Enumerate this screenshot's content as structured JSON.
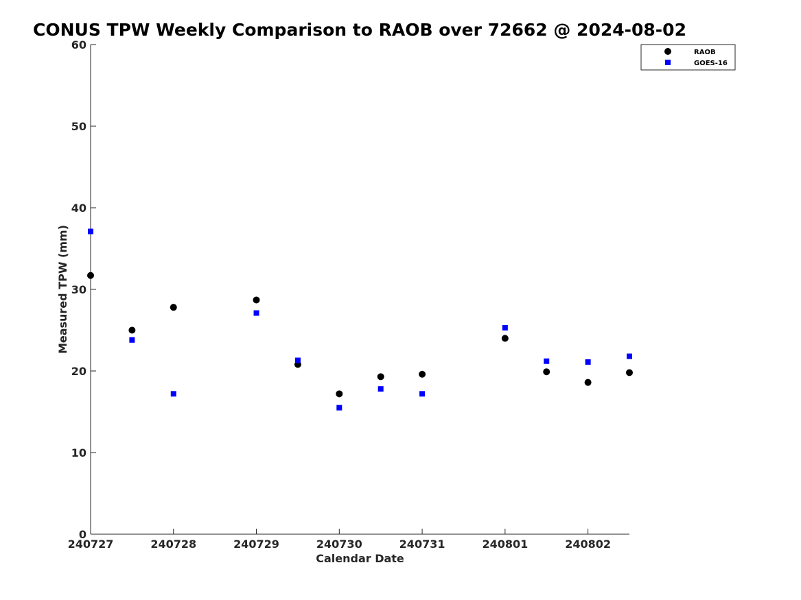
{
  "chart_data": {
    "type": "scatter",
    "title": "CONUS TPW Weekly Comparison to RAOB over 72662 @ 2024-08-02",
    "xlabel": "Calendar Date",
    "ylabel": "Measured TPW (mm)",
    "x_tick_labels": [
      "240727",
      "240728",
      "240729",
      "240730",
      "240731",
      "240801",
      "240802"
    ],
    "xlim": [
      0,
      6.5
    ],
    "ylim": [
      0,
      60
    ],
    "y_ticks": [
      0,
      10,
      20,
      30,
      40,
      50,
      60
    ],
    "grid": false,
    "legend_position": "top-right",
    "series": [
      {
        "name": "RAOB",
        "marker": "circle",
        "color": "#000000",
        "points": [
          {
            "x": 0.0,
            "y": 31.7
          },
          {
            "x": 0.5,
            "y": 25.0
          },
          {
            "x": 1.0,
            "y": 27.8
          },
          {
            "x": 2.0,
            "y": 28.7
          },
          {
            "x": 2.5,
            "y": 20.8
          },
          {
            "x": 3.0,
            "y": 17.2
          },
          {
            "x": 3.5,
            "y": 19.3
          },
          {
            "x": 4.0,
            "y": 19.6
          },
          {
            "x": 5.0,
            "y": 24.0
          },
          {
            "x": 5.5,
            "y": 19.9
          },
          {
            "x": 6.0,
            "y": 18.6
          },
          {
            "x": 6.5,
            "y": 19.8
          }
        ]
      },
      {
        "name": "GOES-16",
        "marker": "square",
        "color": "#0000ff",
        "points": [
          {
            "x": 0.0,
            "y": 37.1
          },
          {
            "x": 0.5,
            "y": 23.8
          },
          {
            "x": 1.0,
            "y": 17.2
          },
          {
            "x": 2.0,
            "y": 27.1
          },
          {
            "x": 2.5,
            "y": 21.3
          },
          {
            "x": 3.0,
            "y": 15.5
          },
          {
            "x": 3.5,
            "y": 17.8
          },
          {
            "x": 4.0,
            "y": 17.2
          },
          {
            "x": 5.0,
            "y": 25.3
          },
          {
            "x": 5.5,
            "y": 21.2
          },
          {
            "x": 6.0,
            "y": 21.1
          },
          {
            "x": 6.5,
            "y": 21.8
          }
        ]
      }
    ]
  }
}
